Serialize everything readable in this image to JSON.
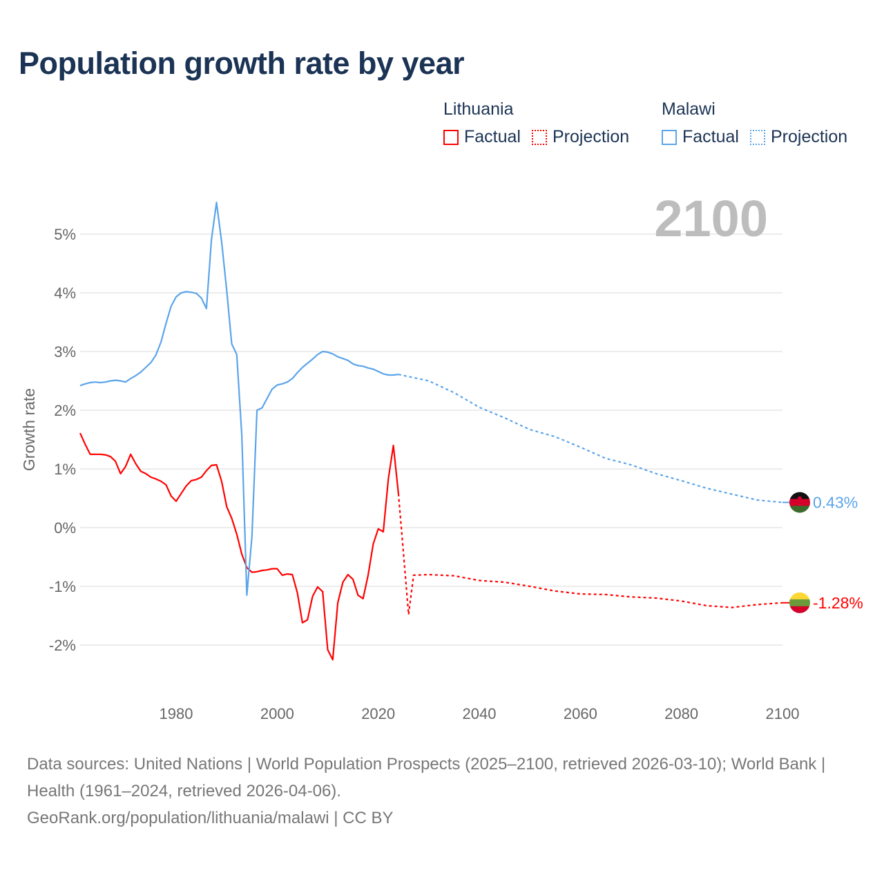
{
  "title": "Population growth rate by year",
  "legend": {
    "groups": [
      {
        "name": "Lithuania",
        "factual_label": "Factual",
        "projection_label": "Projection",
        "color": "#ff0000"
      },
      {
        "name": "Malawi",
        "factual_label": "Factual",
        "projection_label": "Projection",
        "color": "#5ba4ea"
      }
    ]
  },
  "year_badge": "2100",
  "footer": {
    "sources": "Data sources: United Nations | World Population Prospects (2025–2100, retrieved 2026-03-10); World Bank | Health (1961–2024, retrieved 2026-04-06).",
    "credit": "GeoRank.org/population/lithuania/malawi | CC BY"
  },
  "chart_data": {
    "type": "line",
    "title": "Population growth rate by year",
    "xlabel": "",
    "ylabel": "Growth rate",
    "xlim": [
      1961,
      2100
    ],
    "ylim": [
      -2.9,
      5.6
    ],
    "x_ticks": [
      1980,
      2000,
      2020,
      2040,
      2060,
      2080,
      2100
    ],
    "y_ticks": [
      -2,
      -1,
      0,
      1,
      2,
      3,
      4,
      5
    ],
    "y_tick_labels": [
      "-2%",
      "-1%",
      "0%",
      "1%",
      "2%",
      "3%",
      "4%",
      "5%"
    ],
    "grid": "horizontal",
    "series": [
      {
        "name": "Lithuania",
        "color": "#ff0000",
        "end_label": "-1.28%",
        "flag_colors": [
          "#fdd835",
          "#6a9a3a",
          "#d4002a"
        ],
        "factual": {
          "start_year": 1961,
          "values": [
            1.61,
            1.42,
            1.25,
            1.25,
            1.25,
            1.24,
            1.21,
            1.13,
            0.92,
            1.04,
            1.25,
            1.09,
            0.96,
            0.92,
            0.86,
            0.83,
            0.79,
            0.73,
            0.54,
            0.45,
            0.58,
            0.71,
            0.8,
            0.82,
            0.86,
            0.97,
            1.06,
            1.07,
            0.79,
            0.36,
            0.16,
            -0.11,
            -0.45,
            -0.68,
            -0.76,
            -0.75,
            -0.73,
            -0.72,
            -0.7,
            -0.7,
            -0.81,
            -0.79,
            -0.8,
            -1.11,
            -1.62,
            -1.57,
            -1.17,
            -1.01,
            -1.09,
            -2.08,
            -2.25,
            -1.28,
            -0.93,
            -0.8,
            -0.88,
            -1.15,
            -1.21,
            -0.81,
            -0.28,
            -0.02,
            -0.07,
            0.83,
            1.4,
            0.58
          ]
        },
        "projection": {
          "years": [
            2024,
            2025,
            2026,
            2027,
            2030,
            2035,
            2040,
            2045,
            2050,
            2055,
            2060,
            2065,
            2070,
            2075,
            2080,
            2085,
            2090,
            2095,
            2100
          ],
          "values": [
            0.58,
            -0.45,
            -1.48,
            -0.81,
            -0.8,
            -0.82,
            -0.9,
            -0.93,
            -1.0,
            -1.08,
            -1.13,
            -1.14,
            -1.18,
            -1.2,
            -1.25,
            -1.33,
            -1.36,
            -1.31,
            -1.28
          ]
        }
      },
      {
        "name": "Malawi",
        "color": "#5ba4ea",
        "end_label": "0.43%",
        "flag_colors": [
          "#111111",
          "#d4002a",
          "#3b6b2b"
        ],
        "factual": {
          "start_year": 1961,
          "values": [
            2.42,
            2.45,
            2.47,
            2.48,
            2.47,
            2.48,
            2.5,
            2.51,
            2.5,
            2.48,
            2.54,
            2.59,
            2.65,
            2.73,
            2.81,
            2.94,
            3.16,
            3.48,
            3.77,
            3.93,
            4.0,
            4.02,
            4.01,
            3.99,
            3.91,
            3.73,
            4.91,
            5.54,
            4.87,
            4.05,
            3.13,
            2.95,
            1.58,
            -1.15,
            -0.15,
            2.0,
            2.04,
            2.2,
            2.36,
            2.43,
            2.45,
            2.48,
            2.54,
            2.64,
            2.73,
            2.8,
            2.87,
            2.95,
            3.0,
            2.99,
            2.96,
            2.91,
            2.88,
            2.85,
            2.79,
            2.76,
            2.75,
            2.72,
            2.7,
            2.66,
            2.62,
            2.6,
            2.6,
            2.61
          ]
        },
        "projection": {
          "years": [
            2024,
            2030,
            2035,
            2040,
            2045,
            2050,
            2055,
            2060,
            2065,
            2070,
            2075,
            2080,
            2085,
            2090,
            2095,
            2100
          ],
          "values": [
            2.61,
            2.5,
            2.3,
            2.05,
            1.87,
            1.67,
            1.55,
            1.37,
            1.18,
            1.07,
            0.92,
            0.8,
            0.67,
            0.57,
            0.47,
            0.43
          ]
        }
      }
    ]
  }
}
